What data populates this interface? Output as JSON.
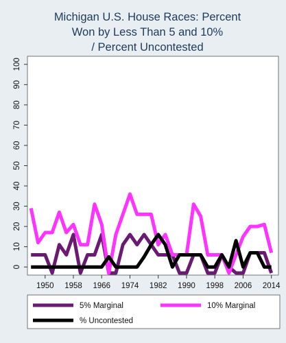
{
  "chart_data": {
    "type": "line",
    "title": [
      "Michigan U.S. House Races: Percent",
      "Won by Less Than 5 and 10%",
      "/ Percent Uncontested"
    ],
    "xlabel": "",
    "ylabel": "",
    "ylim": [
      -4,
      104
    ],
    "xlim": [
      1945,
      2016
    ],
    "y_ticks": [
      0,
      10,
      20,
      30,
      40,
      50,
      60,
      70,
      80,
      90,
      100
    ],
    "x_ticks": [
      1950,
      1958,
      1966,
      1974,
      1982,
      1990,
      1998,
      2006,
      2014
    ],
    "grid": false,
    "legend_position": "bottom",
    "x": [
      1946,
      1948,
      1950,
      1952,
      1954,
      1956,
      1958,
      1960,
      1962,
      1964,
      1966,
      1968,
      1970,
      1972,
      1974,
      1976,
      1978,
      1980,
      1982,
      1984,
      1986,
      1988,
      1990,
      1992,
      1994,
      1996,
      1998,
      2000,
      2002,
      2004,
      2006,
      2008,
      2010,
      2012,
      2014
    ],
    "series": [
      {
        "name": "5% Marginal",
        "color": "#6a1a72",
        "width": 5,
        "values": [
          6,
          6,
          6,
          -3,
          11,
          6,
          16,
          -3,
          6,
          6,
          16,
          -3,
          -3,
          11,
          16,
          11,
          16,
          11,
          6,
          6,
          6,
          -3,
          -3,
          6,
          6,
          -3,
          -3,
          6,
          0,
          -3,
          -3,
          7,
          7,
          7,
          -3
        ]
      },
      {
        "name": "10% Marginal",
        "color": "#ff33ff",
        "width": 5,
        "values": [
          29,
          12,
          17,
          17,
          27,
          17,
          21,
          11,
          11,
          31,
          21,
          -3,
          16,
          26,
          36,
          26,
          26,
          26,
          11,
          16,
          6,
          6,
          6,
          31,
          25,
          6,
          6,
          6,
          -3,
          6,
          15,
          20,
          20,
          21,
          7
        ]
      },
      {
        "name": "% Uncontested",
        "color": "#000000",
        "width": 5,
        "values": [
          0,
          0,
          0,
          0,
          0,
          0,
          0,
          0,
          0,
          0,
          0,
          5,
          0,
          0,
          0,
          0,
          5,
          11,
          16,
          11,
          0,
          6,
          6,
          6,
          6,
          0,
          0,
          6,
          0,
          13,
          0,
          7,
          7,
          0,
          0
        ]
      }
    ]
  }
}
